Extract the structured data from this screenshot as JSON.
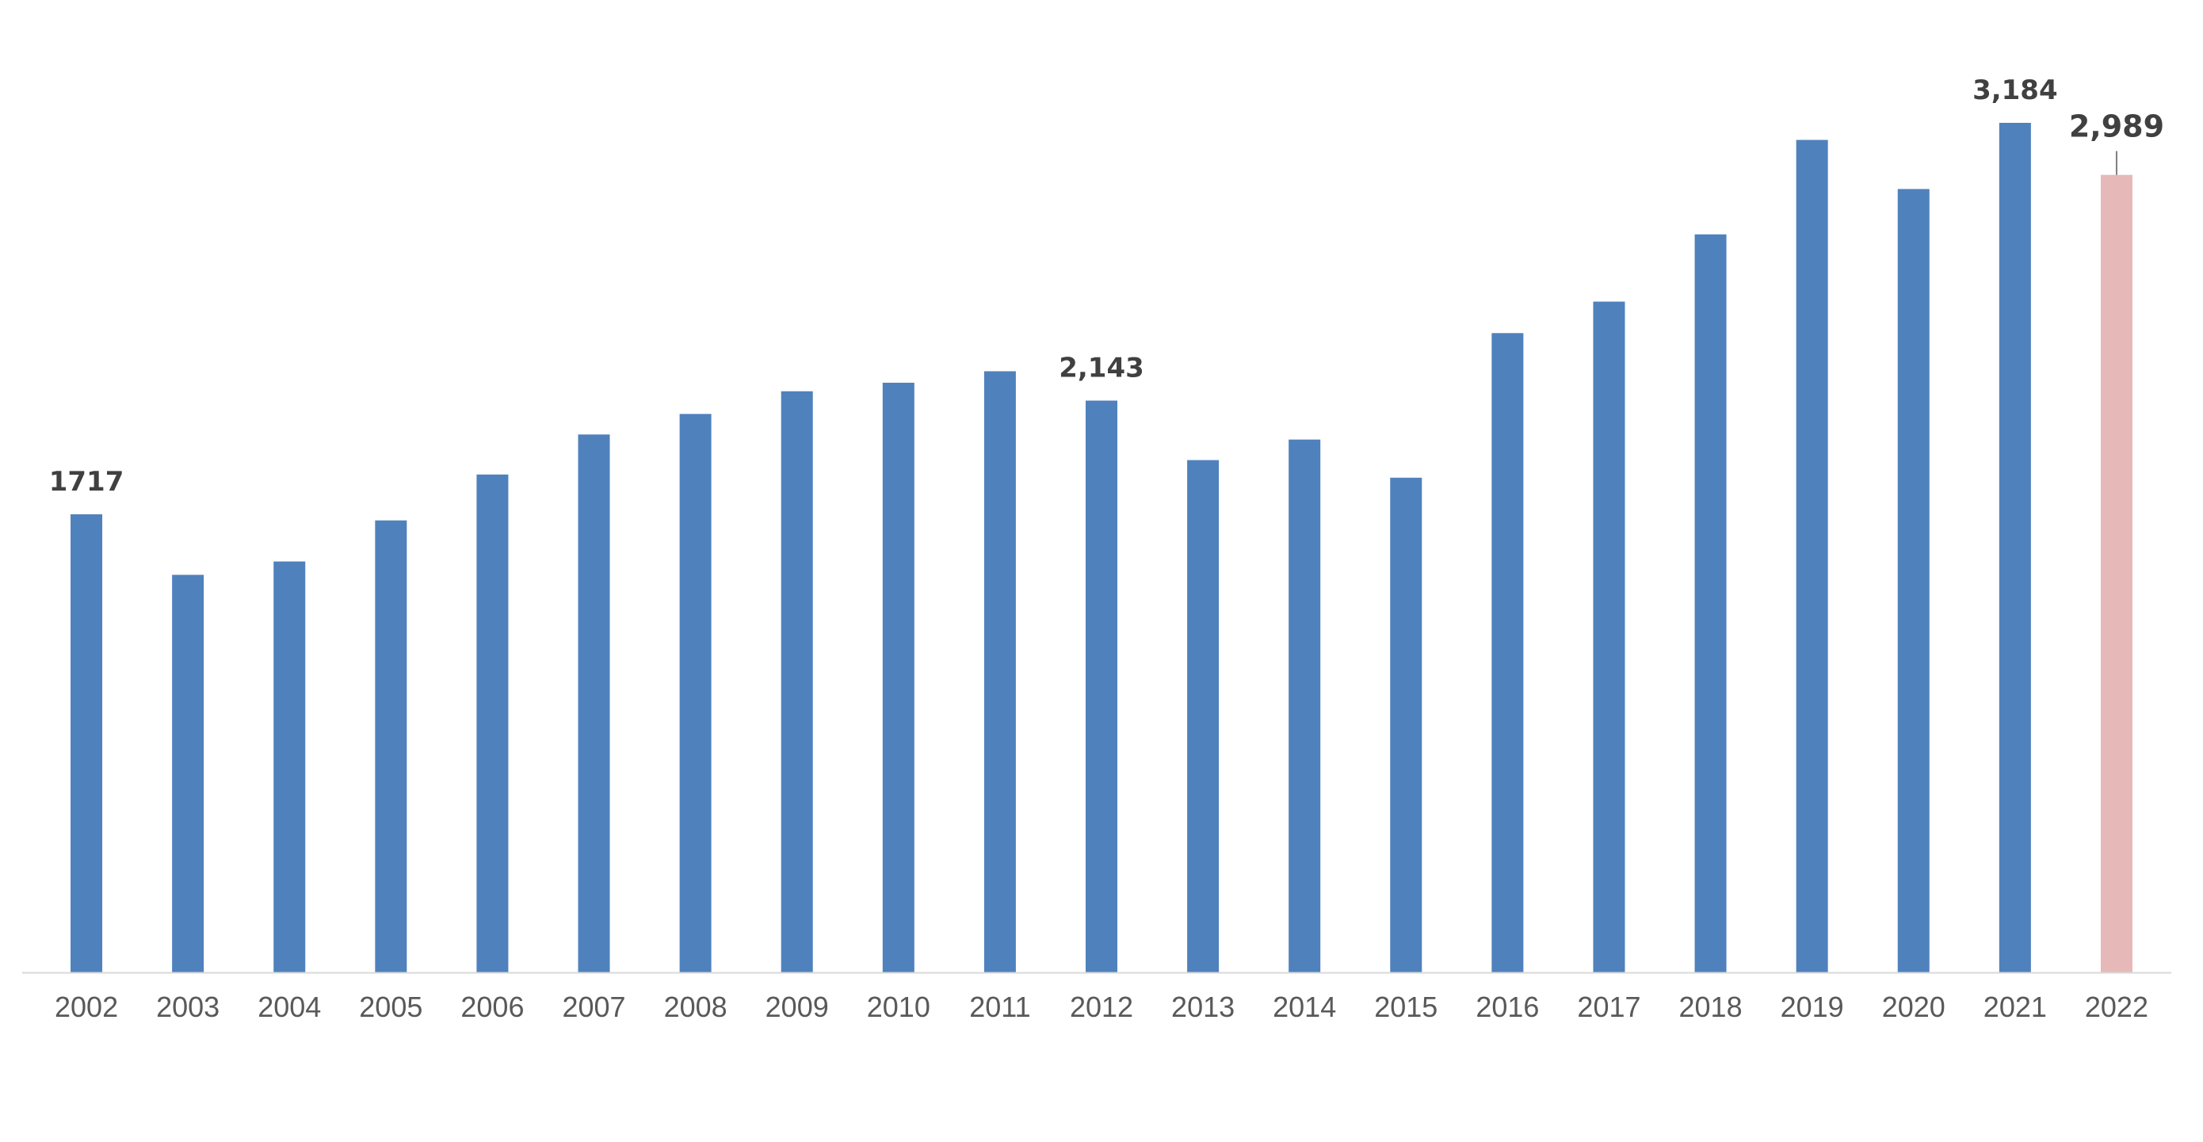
{
  "chart_data": {
    "type": "bar",
    "categories": [
      "2002",
      "2003",
      "2004",
      "2005",
      "2006",
      "2007",
      "2008",
      "2009",
      "2010",
      "2011",
      "2012",
      "2013",
      "2014",
      "2015",
      "2016",
      "2017",
      "2018",
      "2019",
      "2020",
      "2021",
      "2022"
    ],
    "values": [
      1717,
      1490,
      1540,
      1694,
      1866,
      2016,
      2093,
      2178,
      2210,
      2253,
      2143,
      1920,
      1997,
      1854,
      2396,
      2514,
      2766,
      3120,
      2936,
      3184,
      2989
    ],
    "title": "",
    "xlabel": "",
    "ylabel": "",
    "ylim": [
      0,
      3400
    ],
    "grid": false,
    "legend": "none",
    "colors": {
      "default": "#4F81BD",
      "highlight": "#E6B9B8",
      "baseline": "#D9D9D9",
      "label": "#404040",
      "tick": "#595959"
    },
    "highlight_categories": [
      "2022"
    ],
    "data_labels": [
      {
        "category": "2002",
        "text": "1717"
      },
      {
        "category": "2012",
        "text": "2,143"
      },
      {
        "category": "2021",
        "text": "3,184"
      },
      {
        "category": "2022",
        "text": "2,989",
        "emphasis": true,
        "leader_line": true
      }
    ]
  }
}
